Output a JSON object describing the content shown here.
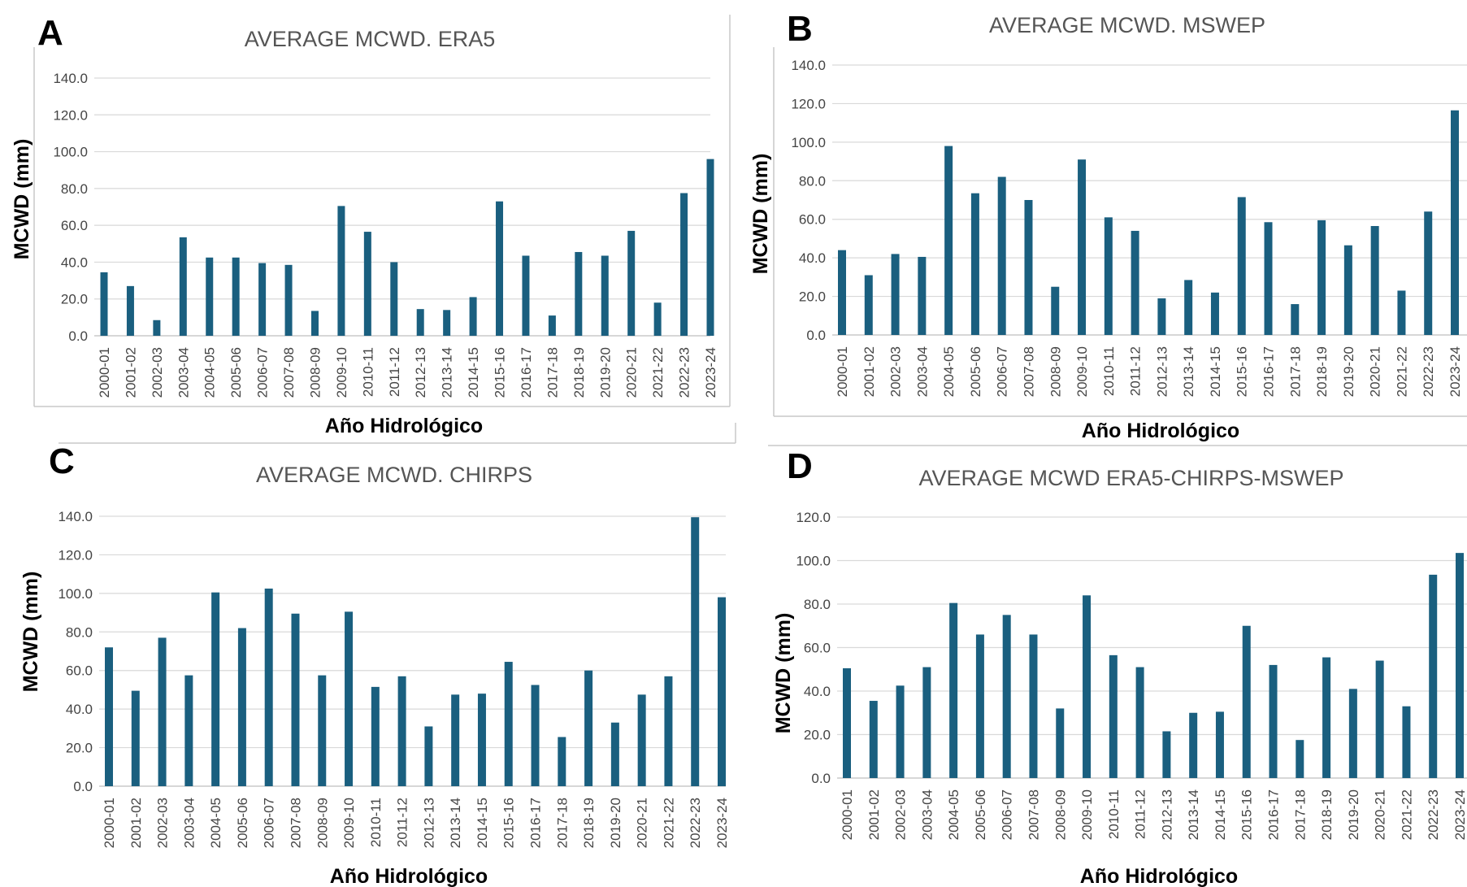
{
  "colors": {
    "bar": "#1a5f7f",
    "grid": "#d9d9d9",
    "frame": "#c8c8c8"
  },
  "chart_data": [
    {
      "panel": "A",
      "type": "bar",
      "title": "AVERAGE   MCWD. ERA5",
      "xlabel": "Año Hidrológico",
      "ylabel": "MCWD (mm)",
      "ylim": [
        0,
        140
      ],
      "yticks": [
        "0.0",
        "20.0",
        "40.0",
        "60.0",
        "80.0",
        "100.0",
        "120.0",
        "140.0"
      ],
      "grid": true,
      "categories": [
        "2000-01",
        "2001-02",
        "2002-03",
        "2003-04",
        "2004-05",
        "2005-06",
        "2006-07",
        "2007-08",
        "2008-09",
        "2009-10",
        "2010-11",
        "2011-12",
        "2012-13",
        "2013-14",
        "2014-15",
        "2015-16",
        "2016-17",
        "2017-18",
        "2018-19",
        "2019-20",
        "2020-21",
        "2021-22",
        "2022-23",
        "2023-24"
      ],
      "values": [
        34.5,
        27,
        8.5,
        53.5,
        42.5,
        42.5,
        39.5,
        38.5,
        13.5,
        70.5,
        56.5,
        40,
        14.5,
        14,
        21,
        73,
        43.5,
        11,
        45.5,
        43.5,
        57,
        18,
        77.5,
        96
      ]
    },
    {
      "panel": "B",
      "type": "bar",
      "title": "AVERAGE MCWD.  MSWEP",
      "xlabel": "Año Hidrológico",
      "ylabel": "MCWD (mm)",
      "ylim": [
        0,
        140
      ],
      "yticks": [
        "0.0",
        "20.0",
        "40.0",
        "60.0",
        "80.0",
        "100.0",
        "120.0",
        "140.0"
      ],
      "grid": true,
      "categories": [
        "2000-01",
        "2001-02",
        "2002-03",
        "2003-04",
        "2004-05",
        "2005-06",
        "2006-07",
        "2007-08",
        "2008-09",
        "2009-10",
        "2010-11",
        "2011-12",
        "2012-13",
        "2013-14",
        "2014-15",
        "2015-16",
        "2016-17",
        "2017-18",
        "2018-19",
        "2019-20",
        "2020-21",
        "2021-22",
        "2022-23",
        "2023-24"
      ],
      "values": [
        44,
        31,
        42,
        40.5,
        98,
        73.5,
        82,
        70,
        25,
        91,
        61,
        54,
        19,
        28.5,
        22,
        71.5,
        58.5,
        16,
        59.5,
        46.5,
        56.5,
        23,
        64,
        116.5
      ]
    },
    {
      "panel": "C",
      "type": "bar",
      "title": "AVERAGE MCWD.  CHIRPS",
      "xlabel": "Año Hidrológico",
      "ylabel": "MCWD (mm)",
      "ylim": [
        0,
        140
      ],
      "yticks": [
        "0.0",
        "20.0",
        "40.0",
        "60.0",
        "80.0",
        "100.0",
        "120.0",
        "140.0"
      ],
      "grid": true,
      "categories": [
        "2000-01",
        "2001-02",
        "2002-03",
        "2003-04",
        "2004-05",
        "2005-06",
        "2006-07",
        "2007-08",
        "2008-09",
        "2009-10",
        "2010-11",
        "2011-12",
        "2012-13",
        "2013-14",
        "2014-15",
        "2015-16",
        "2016-17",
        "2017-18",
        "2018-19",
        "2019-20",
        "2020-21",
        "2021-22",
        "2022-23",
        "2023-24"
      ],
      "values": [
        72,
        49.5,
        77,
        57.5,
        100.5,
        82,
        102.5,
        89.5,
        57.5,
        90.5,
        51.5,
        57,
        31,
        47.5,
        48,
        64.5,
        52.5,
        25.5,
        60,
        33,
        47.5,
        57,
        139.5,
        98
      ]
    },
    {
      "panel": "D",
      "type": "bar",
      "title": "AVERAGE   MCWD  ERA5-CHIRPS-MSWEP",
      "xlabel": "Año Hidrológico",
      "ylabel": "MCWD (mm)",
      "ylim": [
        0,
        120
      ],
      "yticks": [
        "0.0",
        "20.0",
        "40.0",
        "60.0",
        "80.0",
        "100.0",
        "120.0"
      ],
      "grid": true,
      "categories": [
        "2000-01",
        "2001-02",
        "2002-03",
        "2003-04",
        "2004-05",
        "2005-06",
        "2006-07",
        "2007-08",
        "2008-09",
        "2009-10",
        "2010-11",
        "2011-12",
        "2012-13",
        "2013-14",
        "2014-15",
        "2015-16",
        "2016-17",
        "2017-18",
        "2018-19",
        "2019-20",
        "2020-21",
        "2021-22",
        "2022-23",
        "2023-24"
      ],
      "values": [
        50.5,
        35.5,
        42.5,
        51,
        80.5,
        66,
        75,
        66,
        32,
        84,
        56.5,
        51,
        21.5,
        30,
        30.5,
        70,
        52,
        17.5,
        55.5,
        41,
        54,
        33,
        93.5,
        103.5
      ]
    }
  ]
}
